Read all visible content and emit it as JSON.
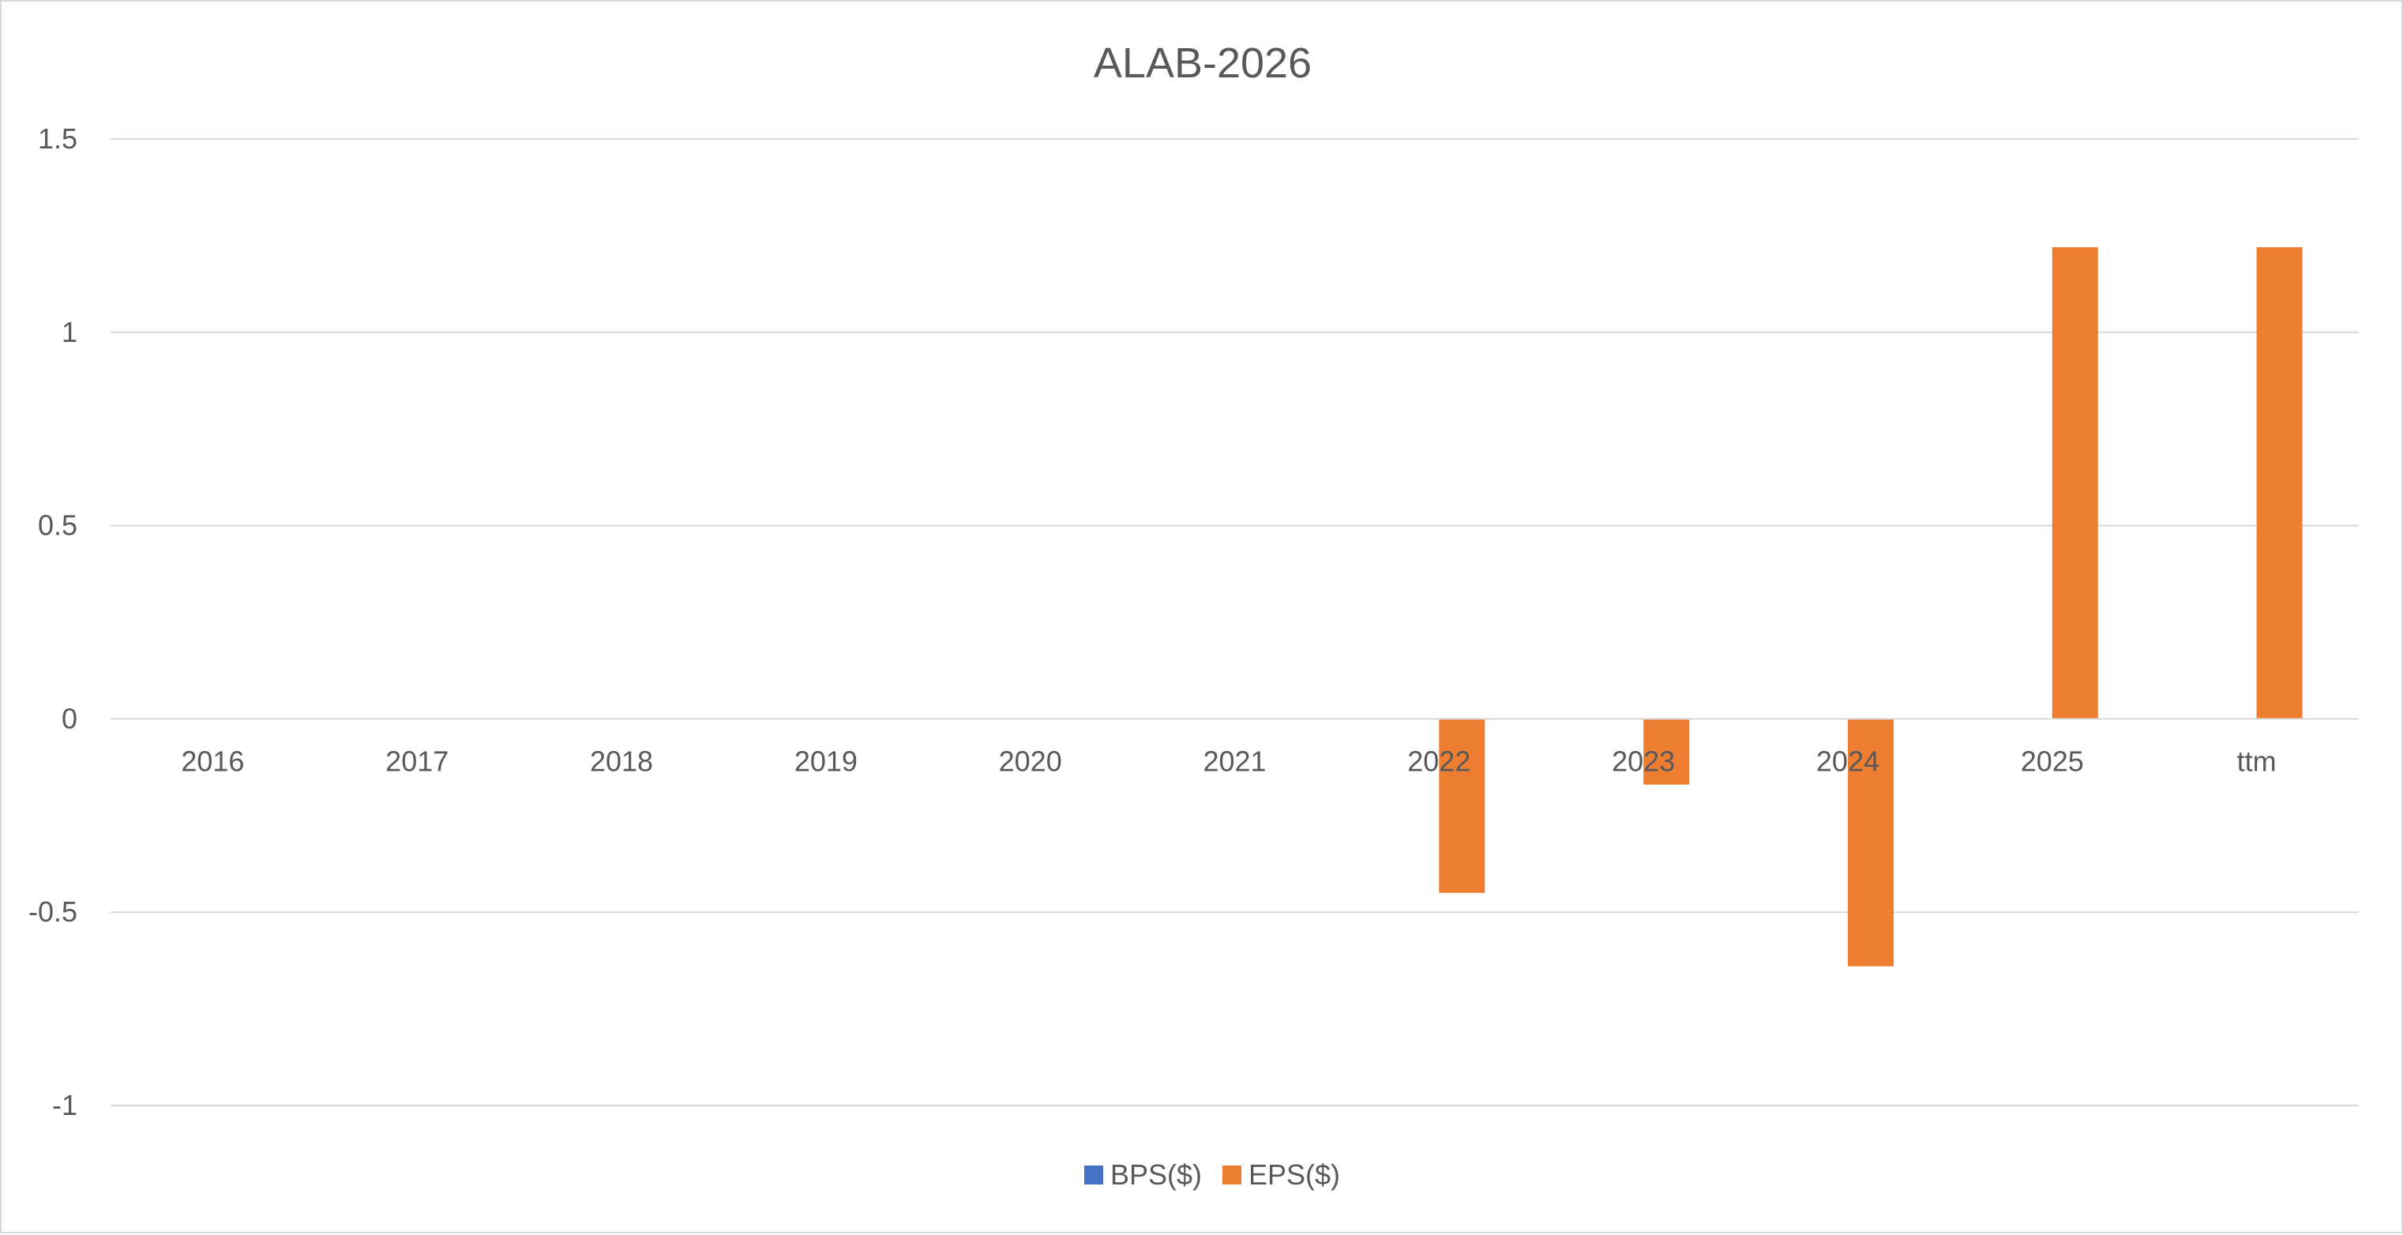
{
  "chart_data": {
    "type": "bar",
    "title": "ALAB-2026",
    "xlabel": "",
    "ylabel": "",
    "categories": [
      "2016",
      "2017",
      "2018",
      "2019",
      "2020",
      "2021",
      "2022",
      "2023",
      "2024",
      "2025",
      "ttm"
    ],
    "series": [
      {
        "name": "BPS($)",
        "color": "#4472c4",
        "values": [
          null,
          null,
          null,
          null,
          null,
          null,
          null,
          null,
          null,
          null,
          null
        ]
      },
      {
        "name": "EPS($)",
        "color": "#ed7d31",
        "values": [
          null,
          null,
          null,
          null,
          null,
          null,
          -0.45,
          -0.17,
          -0.64,
          1.22,
          1.22
        ]
      }
    ],
    "ylim": [
      -1,
      1.5
    ],
    "yticks": [
      1.5,
      1,
      0.5,
      0,
      -0.5,
      -1
    ],
    "ytick_labels": [
      "1.5",
      "1",
      "0.5",
      "0",
      "-0.5",
      "-1"
    ],
    "grid": true,
    "legend_position": "bottom"
  }
}
